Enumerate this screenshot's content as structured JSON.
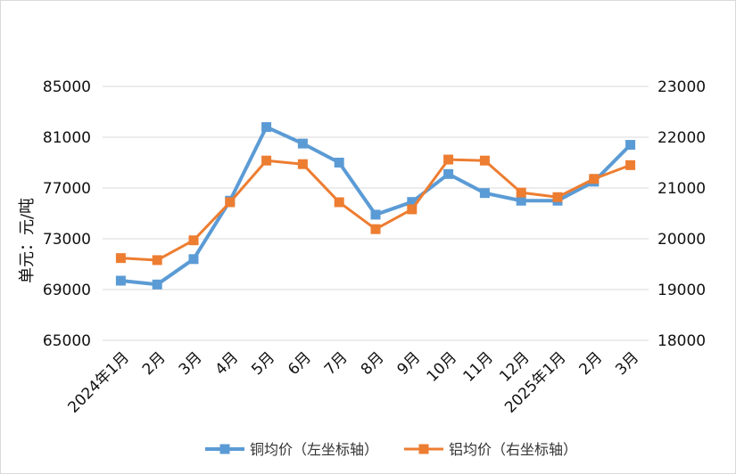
{
  "chart_data": {
    "type": "line",
    "title": "",
    "xlabel": "",
    "ylabel": "单元：元/吨",
    "categories": [
      "2024年1月",
      "2月",
      "3月",
      "4月",
      "5月",
      "6月",
      "7月",
      "8月",
      "9月",
      "10月",
      "11月",
      "12月",
      "2025年1月",
      "2月",
      "3月"
    ],
    "y_left": {
      "ylim": [
        65000,
        85000
      ],
      "ticks": [
        65000,
        69000,
        73000,
        77000,
        81000,
        85000
      ]
    },
    "y_right": {
      "ylim": [
        18000,
        23000
      ],
      "ticks": [
        18000,
        19000,
        20000,
        21000,
        22000,
        23000
      ]
    },
    "grid": true,
    "legend_position": "bottom",
    "series": [
      {
        "name": "铜均价（左坐标轴）",
        "axis": "left",
        "color": "#5b9bd5",
        "values": [
          69700,
          69400,
          71400,
          76000,
          81800,
          80500,
          79000,
          74900,
          75900,
          78100,
          76600,
          76000,
          76000,
          77500,
          80400
        ]
      },
      {
        "name": "铝均价（右坐标轴）",
        "axis": "right",
        "color": "#ed7d31",
        "values": [
          19620,
          19580,
          19970,
          20720,
          21540,
          21470,
          20720,
          20190,
          20580,
          21560,
          21540,
          20910,
          20820,
          21180,
          21450
        ]
      }
    ]
  }
}
